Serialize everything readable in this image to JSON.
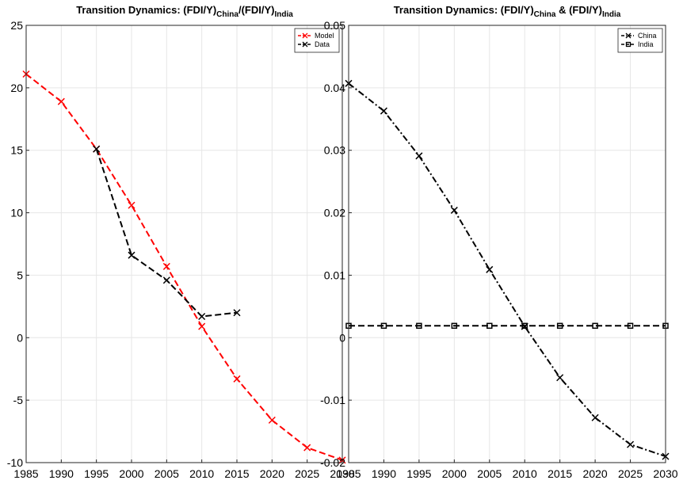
{
  "chart_data": [
    {
      "type": "line",
      "title": {
        "main": "Transition Dynamics: (FDI/Y)",
        "sub1": "China",
        "mid": "/(FDI/Y)",
        "sub2": "India"
      },
      "x_ticks": [
        "1985",
        "1990",
        "1995",
        "2000",
        "2005",
        "2010",
        "2015",
        "2020",
        "2025",
        "2030"
      ],
      "y_ticks": [
        "-10",
        "-5",
        "0",
        "5",
        "10",
        "15",
        "20",
        "25"
      ],
      "xlim": [
        1985,
        2030
      ],
      "ylim": [
        -10,
        25
      ],
      "grid": true,
      "legend_position": "top-right",
      "series": [
        {
          "name": "Model",
          "color": "#ff0000",
          "marker": "x",
          "dash": "dashed",
          "x": [
            1985,
            1990,
            1995,
            2000,
            2005,
            2010,
            2015,
            2020,
            2025,
            2030
          ],
          "values": [
            21.1,
            18.9,
            15.1,
            10.6,
            5.7,
            0.9,
            -3.3,
            -6.6,
            -8.8,
            -9.8
          ]
        },
        {
          "name": "Data",
          "color": "#000000",
          "marker": "x",
          "dash": "dashed",
          "x": [
            1995,
            2000,
            2005,
            2010,
            2015
          ],
          "values": [
            15.1,
            6.6,
            4.6,
            1.7,
            2.0
          ]
        }
      ]
    },
    {
      "type": "line",
      "title": {
        "main": "Transition Dynamics: (FDI/Y)",
        "sub1": "China",
        "mid": " & (FDI/Y)",
        "sub2": "India"
      },
      "x_ticks": [
        "1985",
        "1990",
        "1995",
        "2000",
        "2005",
        "2010",
        "2015",
        "2020",
        "2025",
        "2030"
      ],
      "y_ticks": [
        "-0.02",
        "-0.01",
        "0",
        "0.01",
        "0.02",
        "0.03",
        "0.04",
        "0.05"
      ],
      "xlim": [
        1985,
        2030
      ],
      "ylim": [
        -0.02,
        0.05
      ],
      "grid": true,
      "legend_position": "top-right",
      "series": [
        {
          "name": "China",
          "color": "#000000",
          "marker": "x",
          "dash": "dashdot",
          "x": [
            1985,
            1990,
            1995,
            2000,
            2005,
            2010,
            2015,
            2020,
            2025,
            2030
          ],
          "values": [
            0.0407,
            0.0363,
            0.0291,
            0.0204,
            0.0109,
            0.0018,
            -0.0064,
            -0.0128,
            -0.0171,
            -0.019
          ]
        },
        {
          "name": "India",
          "color": "#000000",
          "marker": "square",
          "dash": "dashed",
          "x": [
            1985,
            1990,
            1995,
            2000,
            2005,
            2010,
            2015,
            2020,
            2025,
            2030
          ],
          "values": [
            0.0019,
            0.0019,
            0.0019,
            0.0019,
            0.0019,
            0.0019,
            0.0019,
            0.0019,
            0.0019,
            0.0019
          ]
        }
      ]
    }
  ]
}
